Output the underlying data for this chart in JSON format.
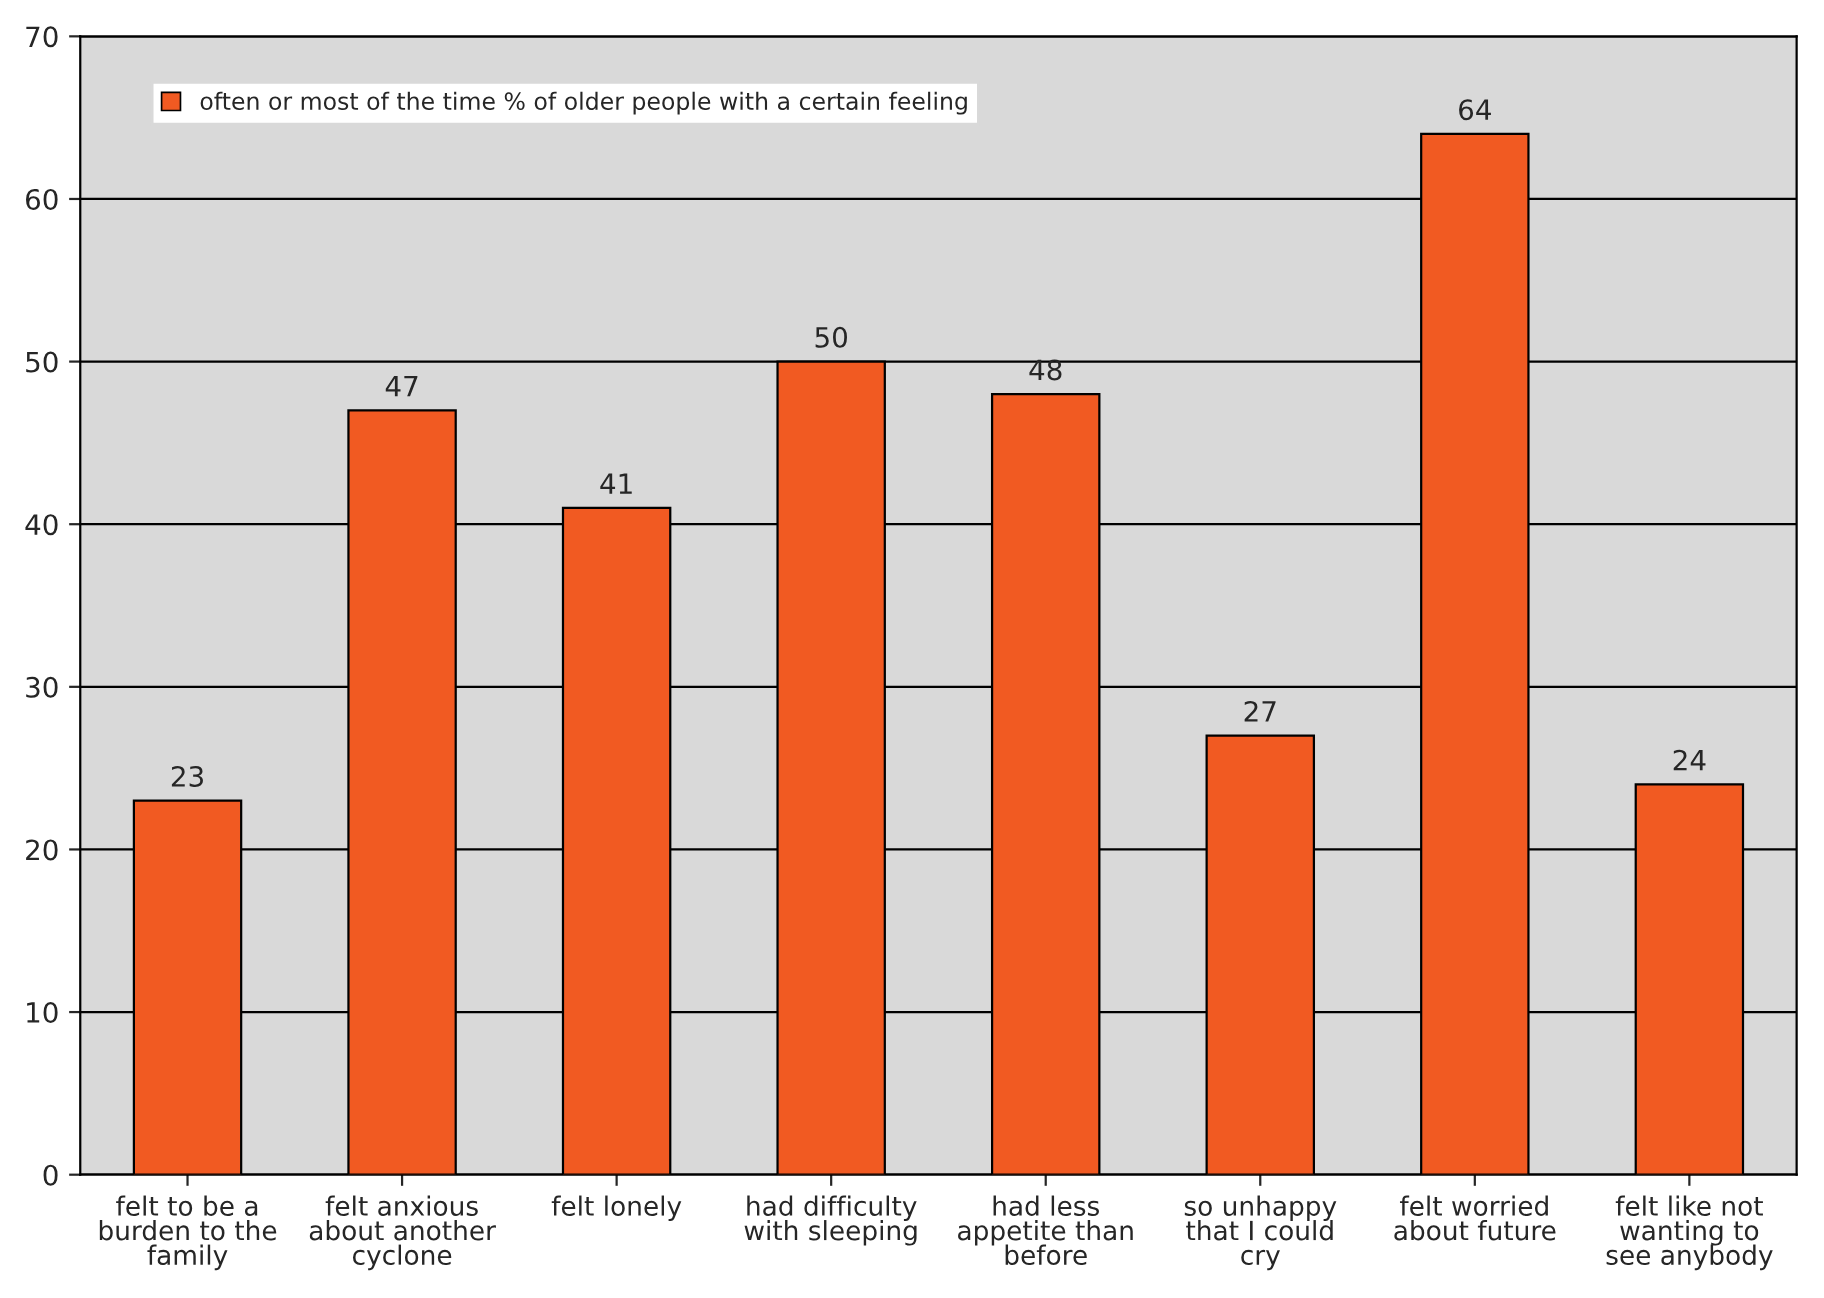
{
  "chart_data": {
    "type": "bar",
    "categories": [
      "felt to be a\nburden to the\nfamily",
      "felt anxious\nabout another\ncyclone",
      "felt lonely",
      "had difficulty\nwith sleeping",
      "had less\nappetite than\nbefore",
      "so unhappy\nthat I could\ncry",
      "felt worried\nabout future",
      "felt like not\nwanting to\nsee anybody"
    ],
    "series": [
      {
        "name": "often or most of the time % of older people with a certain feeling",
        "color": "#f15a22",
        "values": [
          23,
          47,
          41,
          50,
          48,
          27,
          64,
          24
        ]
      }
    ],
    "ylim": [
      0,
      70
    ],
    "yticks": [
      0,
      10,
      20,
      30,
      40,
      50,
      60,
      70
    ],
    "grid": "y",
    "legend": "top left",
    "data_labels": true
  }
}
